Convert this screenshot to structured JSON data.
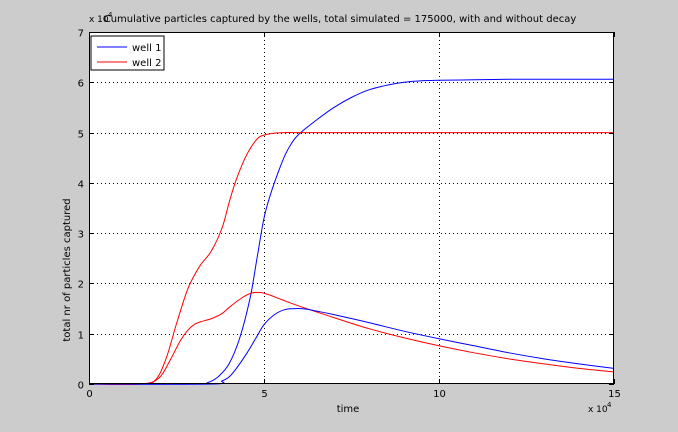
{
  "chart_data": {
    "type": "line",
    "title": "Cumulative particles captured by the wells, total simulated = 175000, with and without decay",
    "xlabel": "time",
    "ylabel": "total nr of particles captured",
    "x_multiplier_base": "x 10",
    "x_multiplier_exp": "4",
    "y_multiplier_base": "x 10",
    "y_multiplier_exp": "4",
    "xlim": [
      0,
      15
    ],
    "ylim": [
      0,
      7
    ],
    "x_ticks": [
      "0",
      "5",
      "10",
      "15"
    ],
    "y_ticks": [
      "0",
      "1",
      "2",
      "3",
      "4",
      "5",
      "6",
      "7"
    ],
    "grid": true,
    "legend_position": "top-left",
    "colors": {
      "well1": "#0000ff",
      "well2": "#ff0000",
      "background": "#cccccc",
      "axes": "#ffffff"
    },
    "series": [
      {
        "name": "well 1",
        "color": "#0000ff",
        "x": [
          0,
          3.0,
          3.4,
          3.7,
          4.0,
          4.3,
          4.6,
          4.8,
          5.0,
          5.2,
          5.4,
          5.6,
          5.8,
          6.0,
          6.5,
          7.0,
          7.5,
          8.0,
          8.5,
          9.0,
          9.5,
          10.0,
          11.0,
          12.0,
          13.0,
          14.0,
          15.0
        ],
        "y": [
          0,
          0,
          0.03,
          0.15,
          0.4,
          0.9,
          1.7,
          2.5,
          3.3,
          3.8,
          4.2,
          4.55,
          4.8,
          4.97,
          5.25,
          5.5,
          5.7,
          5.85,
          5.94,
          6.0,
          6.03,
          6.04,
          6.05,
          6.06,
          6.06,
          6.06,
          6.06
        ]
      },
      {
        "name": "well 2",
        "color": "#ff0000",
        "x": [
          0,
          1.5,
          1.9,
          2.2,
          2.5,
          2.8,
          3.0,
          3.2,
          3.5,
          3.8,
          4.0,
          4.2,
          4.5,
          4.8,
          5.0,
          5.3,
          5.6,
          6.0,
          8.0,
          10.0,
          12.0,
          15.0
        ],
        "y": [
          0,
          0,
          0.08,
          0.5,
          1.2,
          1.85,
          2.15,
          2.38,
          2.65,
          3.1,
          3.6,
          4.05,
          4.55,
          4.87,
          4.95,
          4.99,
          5.0,
          5.0,
          5.0,
          5.0,
          5.0,
          5.0
        ]
      },
      {
        "name": "",
        "color": "#ff0000",
        "x": [
          0,
          1.5,
          2.0,
          2.3,
          2.6,
          2.8,
          3.0,
          3.2,
          3.5,
          3.8,
          4.0,
          4.3,
          4.6,
          4.9,
          5.2,
          5.5,
          6.0,
          7.0,
          8.0,
          9.0,
          10.0,
          11.0,
          12.0,
          13.0,
          14.0,
          15.0
        ],
        "y": [
          0,
          0,
          0.12,
          0.45,
          0.85,
          1.05,
          1.18,
          1.24,
          1.3,
          1.4,
          1.52,
          1.68,
          1.8,
          1.82,
          1.76,
          1.68,
          1.55,
          1.32,
          1.1,
          0.92,
          0.76,
          0.62,
          0.5,
          0.4,
          0.31,
          0.24
        ]
      },
      {
        "name": "",
        "color": "#0000ff",
        "x": [
          0,
          3.5,
          3.8,
          4.0,
          4.2,
          4.5,
          4.8,
          5.0,
          5.3,
          5.6,
          5.9,
          6.2,
          6.5,
          7.0,
          8.0,
          9.0,
          10.0,
          11.0,
          12.0,
          13.0,
          14.0,
          15.0
        ],
        "y": [
          0,
          0,
          0.06,
          0.14,
          0.3,
          0.6,
          0.95,
          1.18,
          1.38,
          1.48,
          1.5,
          1.49,
          1.45,
          1.38,
          1.22,
          1.05,
          0.9,
          0.76,
          0.62,
          0.5,
          0.4,
          0.31
        ]
      }
    ]
  }
}
